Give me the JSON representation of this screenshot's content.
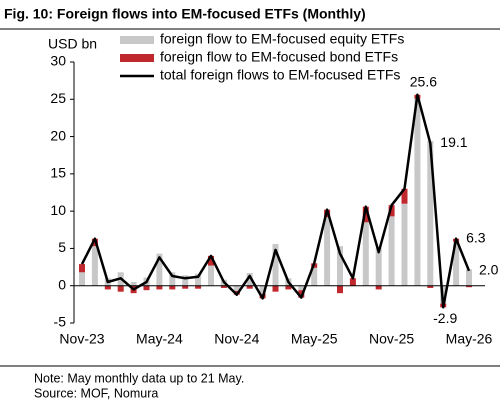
{
  "chart_data": {
    "type": "bar",
    "title": "Fig. 10: Foreign flows into EM-focused ETFs (Monthly)",
    "y_label": "USD bn",
    "note": "Note:  May monthly data up to 21 May.",
    "source": "Source:  MOF, Nomura",
    "categories": [
      "Nov-23",
      null,
      null,
      null,
      null,
      null,
      "May-24",
      null,
      null,
      null,
      null,
      null,
      "Nov-24",
      null,
      null,
      null,
      null,
      null,
      "May-25",
      null,
      null,
      null,
      null,
      null,
      "Nov-25",
      null,
      null,
      null,
      null,
      null,
      "May-26"
    ],
    "series": [
      {
        "name": "foreign flow to EM-focused equity ETFs",
        "type": "bar",
        "color": "#c8c8c8",
        "values": [
          1.8,
          5.3,
          1.0,
          1.8,
          0.5,
          1.1,
          4.3,
          1.8,
          1.4,
          1.6,
          2.7,
          0.8,
          -0.7,
          1.7,
          -1.1,
          5.6,
          1.0,
          -0.6,
          2.4,
          9.2,
          5.3,
          0.0,
          8.5,
          5.0,
          9.3,
          11.0,
          25.1,
          19.4,
          -2.4,
          5.9,
          2.2
        ]
      },
      {
        "name": "foreign flow to EM-focused bond ETFs",
        "type": "bar",
        "color": "#c0282d",
        "values": [
          1.1,
          1.0,
          -0.5,
          -0.8,
          -1.0,
          -0.6,
          -0.5,
          -0.5,
          -0.4,
          -0.4,
          1.3,
          -0.3,
          -0.5,
          -0.4,
          -0.6,
          -0.8,
          -0.5,
          -1.0,
          0.6,
          1.0,
          -1.0,
          1.0,
          2.1,
          -0.5,
          1.5,
          2.0,
          0.5,
          -0.3,
          -0.5,
          0.4,
          -0.2
        ]
      },
      {
        "name": "total foreign flows to EM-focused ETFs",
        "type": "line",
        "color": "#000000",
        "values": [
          2.9,
          6.3,
          0.5,
          1.0,
          -0.5,
          0.5,
          3.8,
          1.3,
          1.0,
          1.2,
          4.0,
          0.5,
          -1.2,
          1.3,
          -1.7,
          4.8,
          0.5,
          -1.6,
          3.0,
          10.2,
          4.3,
          1.0,
          10.6,
          4.5,
          10.8,
          13.0,
          25.6,
          19.1,
          -2.9,
          6.3,
          2.0
        ],
        "value_labels": [
          null,
          null,
          null,
          null,
          null,
          null,
          null,
          null,
          null,
          null,
          null,
          null,
          null,
          null,
          null,
          null,
          null,
          null,
          null,
          null,
          null,
          null,
          null,
          null,
          null,
          null,
          "25.6",
          "19.1",
          "-2.9",
          "6.3",
          "2.0"
        ]
      }
    ],
    "ylim": [
      -5,
      30
    ],
    "yticks": [
      -5,
      0,
      5,
      10,
      15,
      20,
      25,
      30
    ],
    "legend": "top-left"
  }
}
